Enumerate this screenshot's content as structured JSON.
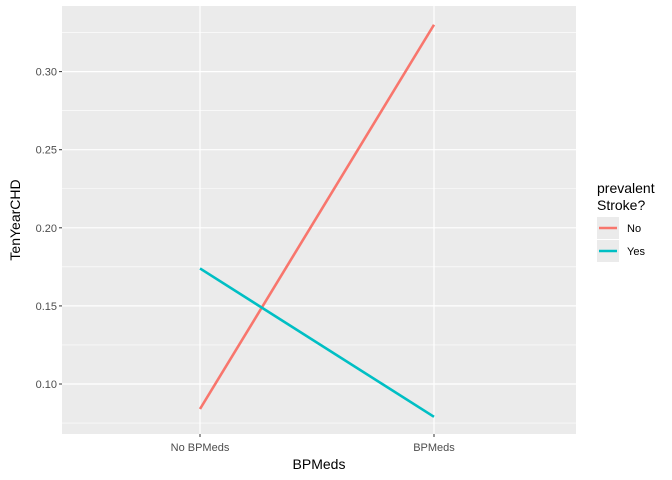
{
  "chart_data": {
    "type": "line",
    "title": "",
    "xlabel": "BPMeds",
    "ylabel": "TenYearCHD",
    "categories": [
      "No BPMeds",
      "BPMeds"
    ],
    "ylim": [
      0.068,
      0.342
    ],
    "yticks": [
      0.1,
      0.15,
      0.2,
      0.25,
      0.3
    ],
    "ytick_labels": [
      "0.10",
      "0.15",
      "0.20",
      "0.25",
      "0.30"
    ],
    "grid": true,
    "legend": {
      "title_lines": [
        "prevalent",
        "Stroke?"
      ],
      "position": "right"
    },
    "series": [
      {
        "name": "No",
        "color": "#F8766D",
        "values": [
          0.084,
          0.33
        ]
      },
      {
        "name": "Yes",
        "color": "#00BFC4",
        "values": [
          0.174,
          0.079
        ]
      }
    ]
  }
}
